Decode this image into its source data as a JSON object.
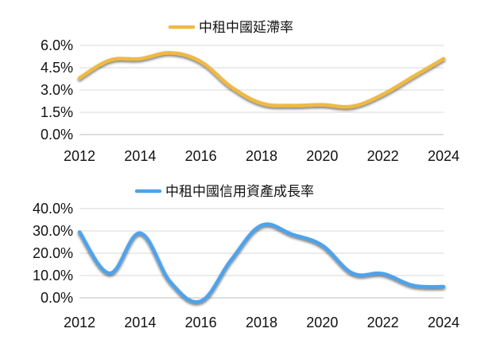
{
  "chart_data": [
    {
      "type": "line",
      "legend_position": "top-center",
      "grid": true,
      "x": [
        2012,
        2013,
        2014,
        2015,
        2016,
        2017,
        2018,
        2019,
        2020,
        2021,
        2022,
        2023,
        2024
      ],
      "ylim": [
        0,
        6
      ],
      "y_ticks": [
        "0.0%",
        "1.5%",
        "3.0%",
        "4.5%",
        "6.0%"
      ],
      "x_ticks": [
        "2012",
        "2014",
        "2016",
        "2018",
        "2020",
        "2022",
        "2024"
      ],
      "series": [
        {
          "name": "中租中國延滯率",
          "color": "#F0B942",
          "values": [
            3.8,
            5.0,
            5.1,
            5.5,
            4.9,
            3.2,
            2.1,
            1.95,
            2.0,
            1.9,
            2.7,
            3.9,
            5.1
          ]
        }
      ]
    },
    {
      "type": "line",
      "legend_position": "top-center",
      "grid": true,
      "x": [
        2012,
        2013,
        2014,
        2015,
        2016,
        2017,
        2018,
        2019,
        2020,
        2021,
        2022,
        2023,
        2024
      ],
      "ylim": [
        0,
        40
      ],
      "y_ticks": [
        "0.0%",
        "10.0%",
        "20.0%",
        "30.0%",
        "40.0%"
      ],
      "x_ticks": [
        "2012",
        "2014",
        "2016",
        "2018",
        "2020",
        "2022",
        "2024"
      ],
      "series": [
        {
          "name": "中租中國信用資產成長率",
          "color": "#4DA3EC",
          "values": [
            29.5,
            11.0,
            29.0,
            7.0,
            -1.5,
            17.0,
            32.5,
            28.5,
            23.5,
            11.0,
            10.8,
            5.5,
            5.0
          ]
        }
      ]
    }
  ]
}
